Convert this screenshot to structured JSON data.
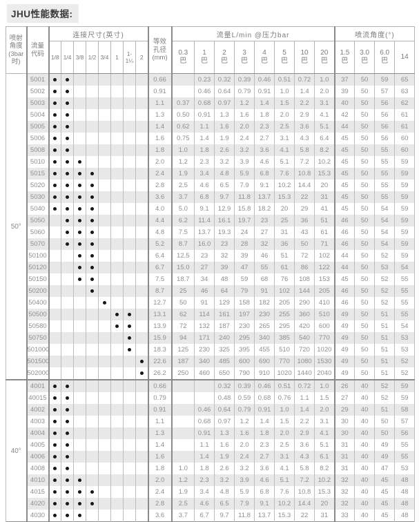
{
  "title": "JHU性能数据:",
  "table": {
    "header": {
      "angle_col": [
        "喷射",
        "角度",
        "(3bar",
        "时)"
      ],
      "code_col": [
        "流量",
        "代码"
      ],
      "conn_group": "连接尺寸(英寸)",
      "sizes": [
        "1/8",
        "1/4",
        "3/8",
        "1/2",
        "3/4",
        "1",
        "1-1¼",
        "2"
      ],
      "orifice_col": [
        "等效",
        "孔径",
        "(mm)"
      ],
      "flow_group": "流量L/min @压力bar",
      "flow_pressures": [
        "0.3",
        "1",
        "2",
        "3",
        "4",
        "5",
        "10",
        "20"
      ],
      "pressure_unit": "巴",
      "spray_group": "喷流角度(°)",
      "spray_pressures": [
        "1.5",
        "3.0",
        "6.0",
        "14"
      ],
      "spray_units": [
        "巴",
        "巴",
        "巴",
        ""
      ]
    },
    "groups": [
      {
        "angle": "50°",
        "rows": [
          {
            "code": "5001",
            "dots": [
              0,
              1
            ],
            "orifice": "0.66",
            "flows": [
              "",
              "0.23",
              "0.32",
              "0.39",
              "0.46",
              "0.51",
              "0.72",
              "1.0"
            ],
            "angles": [
              "37",
              "50",
              "59",
              "65"
            ]
          },
          {
            "code": "5002",
            "dots": [
              0,
              1
            ],
            "orifice": "0.91",
            "flows": [
              "",
              "0.46",
              "0.64",
              "0.79",
              "0.91",
              "1.0",
              "1.4",
              "2.0"
            ],
            "angles": [
              "39",
              "50",
              "57",
              "63"
            ]
          },
          {
            "code": "5003",
            "dots": [
              0,
              1
            ],
            "orifice": "1.1",
            "flows": [
              "0.37",
              "0.68",
              "0.97",
              "1.2",
              "1.4",
              "1.5",
              "2.2",
              "3.1"
            ],
            "angles": [
              "40",
              "50",
              "56",
              "62"
            ]
          },
          {
            "code": "5004",
            "dots": [
              0,
              1
            ],
            "orifice": "1.3",
            "flows": [
              "0.50",
              "0.91",
              "1.3",
              "1.6",
              "1.8",
              "2.0",
              "2.9",
              "4.1"
            ],
            "angles": [
              "42",
              "50",
              "56",
              "61"
            ]
          },
          {
            "code": "5005",
            "dots": [
              0,
              1
            ],
            "orifice": "1.4",
            "flows": [
              "0.62",
              "1.1",
              "1.6",
              "2.0",
              "2.3",
              "2.5",
              "3.6",
              "5.1"
            ],
            "angles": [
              "44",
              "50",
              "56",
              "61"
            ]
          },
          {
            "code": "5006",
            "dots": [
              0,
              1
            ],
            "orifice": "1.6",
            "flows": [
              "0.75",
              "1.4",
              "1.9",
              "2.4",
              "2.7",
              "3.1",
              "4.3",
              "6.4"
            ],
            "angles": [
              "45",
              "50",
              "56",
              "60"
            ]
          },
          {
            "code": "5008",
            "dots": [
              0,
              1
            ],
            "orifice": "1.8",
            "flows": [
              "1.0",
              "1.8",
              "2.6",
              "3.2",
              "3.6",
              "4.1",
              "5.8",
              "8.2"
            ],
            "angles": [
              "45",
              "50",
              "55",
              "60"
            ]
          },
          {
            "code": "5010",
            "dots": [
              0,
              1,
              2
            ],
            "orifice": "2.0",
            "flows": [
              "1.2",
              "2.3",
              "3.2",
              "3.9",
              "4.6",
              "5.1",
              "7.2",
              "10.2"
            ],
            "angles": [
              "45",
              "50",
              "55",
              "59"
            ]
          },
          {
            "code": "5015",
            "dots": [
              0,
              1,
              2,
              3
            ],
            "orifice": "2.4",
            "flows": [
              "1.9",
              "3.4",
              "4.8",
              "5.9",
              "6.8",
              "7.6",
              "10.8",
              "15.3"
            ],
            "angles": [
              "45",
              "50",
              "55",
              "59"
            ]
          },
          {
            "code": "5020",
            "dots": [
              0,
              1,
              2,
              3
            ],
            "orifice": "2.8",
            "flows": [
              "2.5",
              "4.6",
              "6.5",
              "7.9",
              "9.1",
              "10.2",
              "14.4",
              "20"
            ],
            "angles": [
              "45",
              "50",
              "55",
              "59"
            ]
          },
          {
            "code": "5030",
            "dots": [
              0,
              1,
              2,
              3
            ],
            "orifice": "3.6",
            "flows": [
              "3.7",
              "6.8",
              "9.7",
              "11.8",
              "13.7",
              "15.3",
              "22",
              "31"
            ],
            "angles": [
              "45",
              "50",
              "55",
              "59"
            ]
          },
          {
            "code": "5040",
            "dots": [
              0,
              1,
              2,
              3
            ],
            "orifice": "4.0",
            "flows": [
              "5.0",
              "9.1",
              "12.9",
              "15.8",
              "18.2",
              "20",
              "29",
              "41"
            ],
            "angles": [
              "45",
              "50",
              "54",
              "59"
            ]
          },
          {
            "code": "5050",
            "dots": [
              1,
              2,
              3
            ],
            "orifice": "4.4",
            "flows": [
              "6.2",
              "11.4",
              "16.1",
              "19.7",
              "23",
              "25",
              "36",
              "51"
            ],
            "angles": [
              "46",
              "50",
              "54",
              "59"
            ]
          },
          {
            "code": "5060",
            "dots": [
              1,
              2,
              3
            ],
            "orifice": "4.8",
            "flows": [
              "7.5",
              "13.7",
              "19.3",
              "24",
              "27",
              "31",
              "43",
              "61"
            ],
            "angles": [
              "46",
              "50",
              "54",
              "59"
            ]
          },
          {
            "code": "5070",
            "dots": [
              1,
              2,
              3
            ],
            "orifice": "5.2",
            "flows": [
              "8.7",
              "16.0",
              "23",
              "28",
              "32",
              "36",
              "50",
              "71"
            ],
            "angles": [
              "46",
              "50",
              "54",
              "59"
            ]
          },
          {
            "code": "50100",
            "dots": [
              2,
              3
            ],
            "orifice": "6.4",
            "flows": [
              "12.5",
              "23",
              "32",
              "39",
              "46",
              "51",
              "72",
              "102"
            ],
            "angles": [
              "44",
              "50",
              "52",
              "59"
            ]
          },
          {
            "code": "50120",
            "dots": [
              2,
              3
            ],
            "orifice": "6.7",
            "flows": [
              "15.0",
              "27",
              "39",
              "47",
              "55",
              "61",
              "86",
              "122"
            ],
            "angles": [
              "44",
              "50",
              "53",
              "54"
            ]
          },
          {
            "code": "50150",
            "dots": [
              2,
              3
            ],
            "orifice": "7.5",
            "flows": [
              "18.7",
              "34",
              "48",
              "59",
              "68",
              "76",
              "108",
              "153"
            ],
            "angles": [
              "45",
              "50",
              "52",
              "55"
            ]
          },
          {
            "code": "50200",
            "dots": [
              3
            ],
            "orifice": "8.7",
            "flows": [
              "25",
              "46",
              "64",
              "79",
              "91",
              "102",
              "144",
              "205"
            ],
            "angles": [
              "46",
              "50",
              "52",
              "55"
            ]
          },
          {
            "code": "50400",
            "dots": [
              4
            ],
            "orifice": "12.7",
            "flows": [
              "50",
              "91",
              "129",
              "158",
              "182",
              "205",
              "290",
              "410"
            ],
            "angles": [
              "46",
              "50",
              "52",
              "55"
            ]
          },
          {
            "code": "50500",
            "dots": [
              5,
              6
            ],
            "orifice": "13.1",
            "flows": [
              "62",
              "114",
              "161",
              "197",
              "230",
              "255",
              "360",
              "510"
            ],
            "angles": [
              "49",
              "50",
              "51",
              "55"
            ]
          },
          {
            "code": "50580",
            "dots": [
              5,
              6
            ],
            "orifice": "13.9",
            "flows": [
              "72",
              "132",
              "187",
              "230",
              "265",
              "295",
              "420",
              "600"
            ],
            "angles": [
              "49",
              "50",
              "51",
              "54"
            ]
          },
          {
            "code": "50750",
            "dots": [
              6
            ],
            "orifice": "15.9",
            "flows": [
              "94",
              "171",
              "240",
              "295",
              "340",
              "385",
              "540",
              "770"
            ],
            "angles": [
              "49",
              "50",
              "51",
              "53"
            ]
          },
          {
            "code": "501000",
            "dots": [
              6
            ],
            "orifice": "18.3",
            "flows": [
              "125",
              "230",
              "325",
              "395",
              "455",
              "510",
              "720",
              "1020"
            ],
            "angles": [
              "49",
              "50",
              "51",
              "53"
            ]
          },
          {
            "code": "501500",
            "dots": [
              7
            ],
            "orifice": "22.6",
            "flows": [
              "187",
              "340",
              "485",
              "600",
              "690",
              "770",
              "1080",
              "1530"
            ],
            "angles": [
              "49",
              "50",
              "51",
              "52"
            ]
          },
          {
            "code": "502000",
            "dots": [
              7
            ],
            "orifice": "26.2",
            "flows": [
              "250",
              "460",
              "650",
              "790",
              "910",
              "1020",
              "1440",
              "2040"
            ],
            "angles": [
              "49",
              "50",
              "51",
              "52"
            ]
          }
        ]
      },
      {
        "angle": "40°",
        "rows": [
          {
            "code": "4001",
            "dots": [
              0,
              1
            ],
            "orifice": "0.66",
            "flows": [
              "",
              "",
              "0.32",
              "0.39",
              "0.46",
              "0.51",
              "0.72",
              "1.0"
            ],
            "angles": [
              "26",
              "40",
              "52",
              "59"
            ]
          },
          {
            "code": "40015",
            "dots": [
              0,
              1
            ],
            "orifice": "0.79",
            "flows": [
              "",
              "",
              "0.48",
              "0.59",
              "0.68",
              "0.76",
              "1.1",
              "1.5"
            ],
            "angles": [
              "27",
              "40",
              "52",
              "59"
            ]
          },
          {
            "code": "4002",
            "dots": [
              0,
              1
            ],
            "orifice": "0.91",
            "flows": [
              "",
              "0.46",
              "0.64",
              "0.79",
              "0.91",
              "1.0",
              "1.4",
              "2.0"
            ],
            "angles": [
              "29",
              "40",
              "51",
              "58"
            ]
          },
          {
            "code": "4003",
            "dots": [
              0,
              1
            ],
            "orifice": "1.1",
            "flows": [
              "",
              "0.68",
              "0.97",
              "1.2",
              "1.4",
              "1.5",
              "2.2",
              "3.1"
            ],
            "angles": [
              "30",
              "40",
              "50",
              "57"
            ]
          },
          {
            "code": "4004",
            "dots": [
              0,
              1
            ],
            "orifice": "1.3",
            "flows": [
              "",
              "0.91",
              "1.3",
              "1.6",
              "1.8",
              "2.0",
              "2.9",
              "4.1"
            ],
            "angles": [
              "30",
              "40",
              "50",
              "56"
            ]
          },
          {
            "code": "4005",
            "dots": [
              0,
              1
            ],
            "orifice": "1.4",
            "flows": [
              "",
              "1.1",
              "1.6",
              "2.0",
              "2.3",
              "2.5",
              "3.6",
              "5.1"
            ],
            "angles": [
              "31",
              "40",
              "49",
              "55"
            ]
          },
          {
            "code": "4006",
            "dots": [
              0,
              1
            ],
            "orifice": "1.6",
            "flows": [
              "",
              "1.4",
              "1.9",
              "2.4",
              "2.7",
              "3.1",
              "4.3",
              "6.1"
            ],
            "angles": [
              "31",
              "40",
              "49",
              "55"
            ]
          },
          {
            "code": "4008",
            "dots": [
              0,
              1
            ],
            "orifice": "1.8",
            "flows": [
              "1.0",
              "1.8",
              "2.6",
              "3.2",
              "3.6",
              "4.1",
              "5.8",
              "8.2"
            ],
            "angles": [
              "31",
              "40",
              "47",
              "53"
            ]
          },
          {
            "code": "4010",
            "dots": [
              0,
              1,
              2
            ],
            "orifice": "2.0",
            "flows": [
              "1.2",
              "2.3",
              "3.2",
              "3.9",
              "4.6",
              "5.1",
              "7.2",
              "10.2"
            ],
            "angles": [
              "32",
              "40",
              "45",
              "48"
            ]
          },
          {
            "code": "4015",
            "dots": [
              0,
              1,
              2,
              3
            ],
            "orifice": "2.4",
            "flows": [
              "1.9",
              "3.4",
              "4.8",
              "5.9",
              "6.8",
              "7.6",
              "10.8",
              "15.3"
            ],
            "angles": [
              "32",
              "40",
              "45",
              "48"
            ]
          },
          {
            "code": "4020",
            "dots": [
              0,
              1,
              2,
              3
            ],
            "orifice": "2.8",
            "flows": [
              "2.5",
              "4.6",
              "6.5",
              "7.9",
              "9.1",
              "10.2",
              "14.4",
              "20"
            ],
            "angles": [
              "32",
              "40",
              "45",
              "48"
            ]
          },
          {
            "code": "4030",
            "dots": [
              0,
              1,
              2
            ],
            "orifice": "3.6",
            "flows": [
              "3.7",
              "6.7",
              "9.7",
              "11.8",
              "13.7",
              "15.3",
              "22",
              "31"
            ],
            "angles": [
              "33",
              "40",
              "45",
              "48"
            ]
          }
        ]
      }
    ]
  }
}
